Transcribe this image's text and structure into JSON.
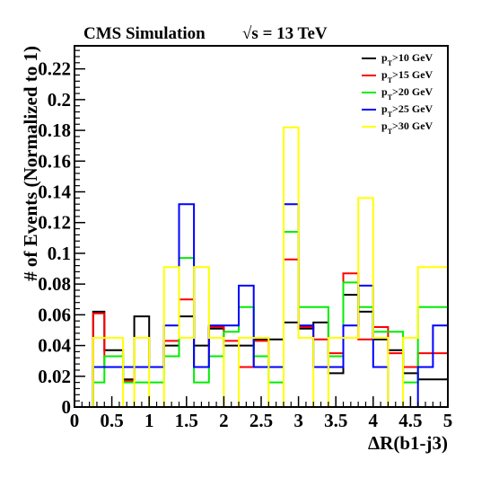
{
  "header": {
    "experiment": "CMS Simulation",
    "energy": "√s = 13 TeV"
  },
  "chart_data": {
    "type": "histogram-step",
    "xlabel": "ΔR(b1-j3)",
    "ylabel": "# of Events (Normalized to 1)",
    "xlim": [
      0,
      5
    ],
    "ylim": [
      0,
      0.235
    ],
    "bin_edges": [
      0,
      0.25,
      0.4,
      0.65,
      0.8,
      1.0,
      1.2,
      1.4,
      1.6,
      1.8,
      2.0,
      2.2,
      2.4,
      2.6,
      2.8,
      3.0,
      3.2,
      3.4,
      3.6,
      3.8,
      4.0,
      4.2,
      4.4,
      4.6,
      4.8,
      5.0
    ],
    "x_ticks": [
      {
        "v": 0,
        "label": "0"
      },
      {
        "v": 0.5,
        "label": "0.5"
      },
      {
        "v": 1,
        "label": "1"
      },
      {
        "v": 1.5,
        "label": "1.5"
      },
      {
        "v": 2,
        "label": "2"
      },
      {
        "v": 2.5,
        "label": "2.5"
      },
      {
        "v": 3,
        "label": "3"
      },
      {
        "v": 3.5,
        "label": "3.5"
      },
      {
        "v": 4,
        "label": "4"
      },
      {
        "v": 4.5,
        "label": "4.5"
      },
      {
        "v": 5,
        "label": "5"
      }
    ],
    "y_ticks": [
      {
        "v": 0,
        "label": "0"
      },
      {
        "v": 0.02,
        "label": "0.02"
      },
      {
        "v": 0.04,
        "label": "0.04"
      },
      {
        "v": 0.06,
        "label": "0.06"
      },
      {
        "v": 0.08,
        "label": "0.08"
      },
      {
        "v": 0.1,
        "label": "0.1"
      },
      {
        "v": 0.12,
        "label": "0.12"
      },
      {
        "v": 0.14,
        "label": "0.14"
      },
      {
        "v": 0.16,
        "label": "0.16"
      },
      {
        "v": 0.18,
        "label": "0.18"
      },
      {
        "v": 0.2,
        "label": "0.2"
      },
      {
        "v": 0.22,
        "label": "0.22"
      }
    ],
    "legend_position": "top-right",
    "series": [
      {
        "name": "p_T>10 GeV",
        "label_main": "p",
        "label_sub": "T",
        "label_rest": ">10 GeV",
        "color": "#000000",
        "values": [
          0.0,
          0.062,
          0.037,
          0.018,
          0.059,
          0.026,
          0.04,
          0.059,
          0.04,
          0.051,
          0.04,
          0.04,
          0.044,
          0.044,
          0.055,
          0.051,
          0.055,
          0.022,
          0.073,
          0.062,
          0.044,
          0.037,
          0.022,
          0.018,
          0.018
        ]
      },
      {
        "name": "p_T>15 GeV",
        "label_main": "p",
        "label_sub": "T",
        "label_rest": ">15 GeV",
        "color": "#ff0000",
        "values": [
          0.0,
          0.061,
          0.026,
          0.017,
          0.026,
          0.026,
          0.043,
          0.07,
          0.026,
          0.052,
          0.043,
          0.026,
          0.043,
          0.026,
          0.096,
          0.052,
          0.044,
          0.035,
          0.087,
          0.044,
          0.052,
          0.035,
          0.026,
          0.035,
          0.035
        ]
      },
      {
        "name": "p_T>20 GeV",
        "label_main": "p",
        "label_sub": "T",
        "label_rest": ">20 GeV",
        "color": "#00ee00",
        "values": [
          0.0,
          0.016,
          0.033,
          0.016,
          0.016,
          0.016,
          0.033,
          0.097,
          0.016,
          0.033,
          0.049,
          0.065,
          0.033,
          0.016,
          0.114,
          0.065,
          0.065,
          0.033,
          0.081,
          0.065,
          0.049,
          0.049,
          0.016,
          0.065,
          0.065
        ]
      },
      {
        "name": "p_T>25 GeV",
        "label_main": "p",
        "label_sub": "T",
        "label_rest": ">25 GeV",
        "color": "#0000ff",
        "values": [
          0.0,
          0.026,
          0.026,
          0.026,
          0.026,
          0.026,
          0.053,
          0.132,
          0.026,
          0.053,
          0.053,
          0.079,
          0.026,
          0.026,
          0.132,
          0.053,
          0.026,
          0.026,
          0.053,
          0.079,
          0.026,
          0.0,
          0.0,
          0.026,
          0.053
        ]
      },
      {
        "name": "p_T>30 GeV",
        "label_main": "p",
        "label_sub": "T",
        "label_rest": ">30 GeV",
        "color": "#ffff00",
        "values": [
          0.0,
          0.045,
          0.045,
          0.0,
          0.045,
          0.0,
          0.091,
          0.045,
          0.091,
          0.045,
          0.0,
          0.045,
          0.045,
          0.0,
          0.182,
          0.045,
          0.0,
          0.045,
          0.045,
          0.136,
          0.045,
          0.0,
          0.045,
          0.091,
          0.091
        ]
      }
    ]
  }
}
